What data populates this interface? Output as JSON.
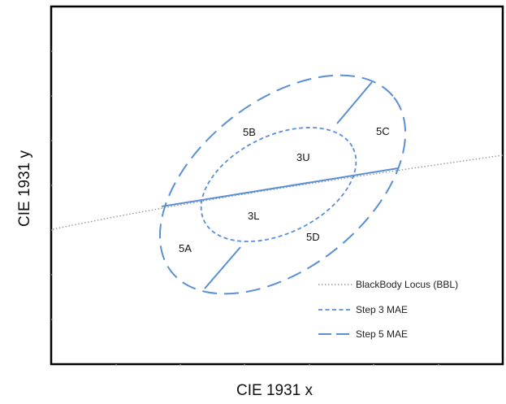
{
  "chart_data": {
    "type": "diagram",
    "title": "",
    "xlabel": "CIE 1931 x",
    "ylabel": "CIE 1931 y",
    "grid": false,
    "legend_position": "bottom-right",
    "colors": {
      "ellipse": "#5b8fd4",
      "bbl": "#9a9a9a",
      "frame": "#000000"
    },
    "legend": [
      {
        "label": "BlackBody Locus (BBL)",
        "style": "dotted"
      },
      {
        "label": "Step 3 MAE",
        "style": "short-dash"
      },
      {
        "label": "Step 5 MAE",
        "style": "long-dash"
      }
    ],
    "regions": [
      {
        "label": "5A"
      },
      {
        "label": "5B"
      },
      {
        "label": "5C"
      },
      {
        "label": "5D"
      },
      {
        "label": "3U"
      },
      {
        "label": "3L"
      }
    ]
  }
}
